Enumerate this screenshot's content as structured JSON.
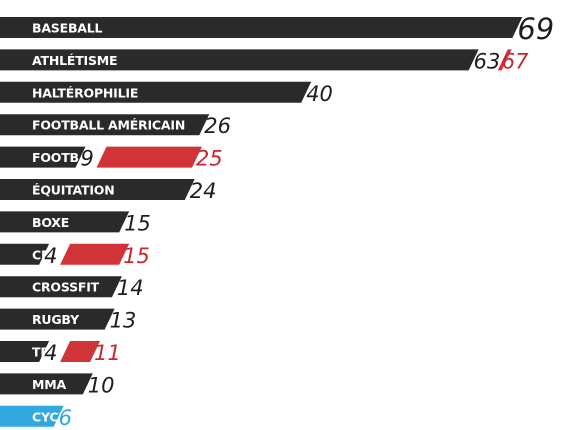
{
  "chart_data": {
    "type": "bar",
    "orientation": "horizontal",
    "stacked": true,
    "categories": [
      "BASEBALL",
      "ATHLÉTISME",
      "HALTÉROPHILIE",
      "FOOTBALL AMÉRICAIN",
      "FOOTBALL",
      "ÉQUITATION",
      "BOXE",
      "CRICKET",
      "CROSSFIT",
      "RUGBY",
      "TENNIS",
      "MMA",
      "CYCLISME"
    ],
    "values": [
      69,
      63,
      40,
      26,
      9,
      24,
      15,
      4,
      14,
      13,
      4,
      10,
      6
    ],
    "totals": [
      null,
      67,
      null,
      null,
      25,
      null,
      null,
      15,
      null,
      null,
      11,
      null,
      null
    ],
    "highlight_index": 12,
    "xlim": [
      0,
      72
    ],
    "colors": {
      "bar": "#2a2a2a",
      "extension": "#d03438",
      "highlight": "#31a9df",
      "value_text": "#1e1e1e",
      "extension_text": "#c8282c",
      "highlight_text": "#31a9df",
      "label_text": "#ffffff"
    }
  }
}
